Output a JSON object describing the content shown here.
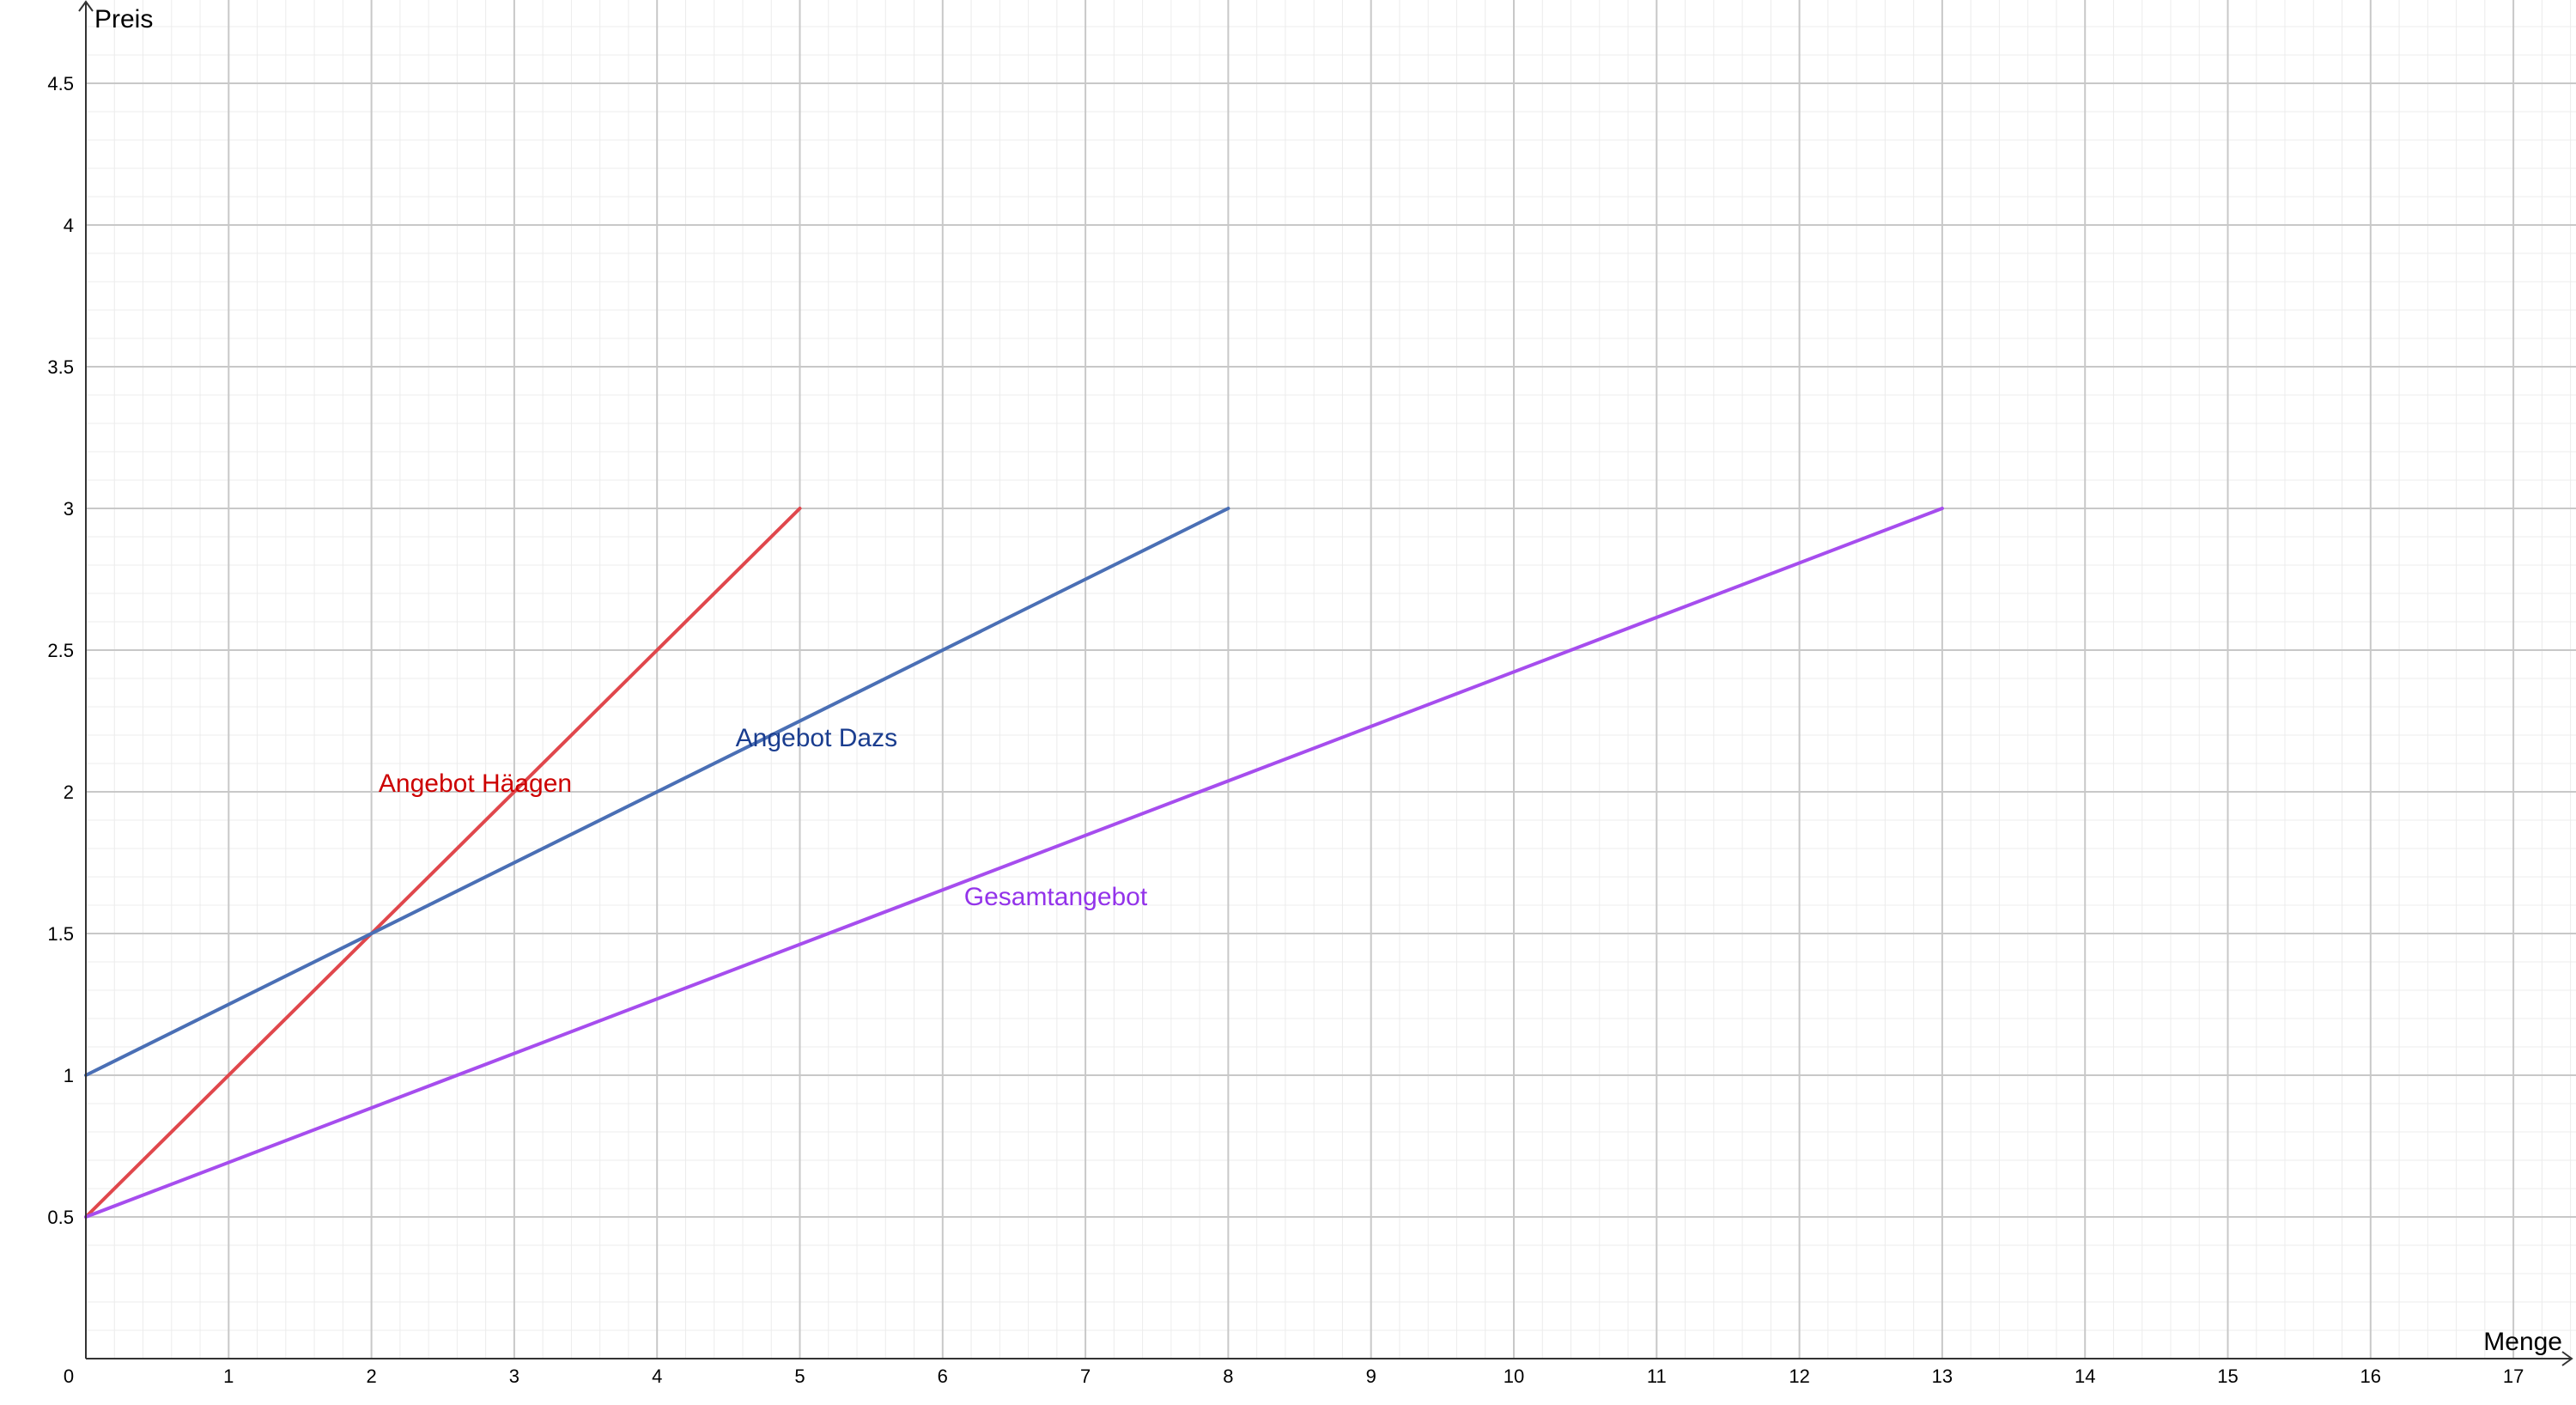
{
  "chart_data": {
    "type": "line",
    "xlabel": "Menge",
    "ylabel": "Preis",
    "xlim": [
      0,
      17.5
    ],
    "ylim": [
      0,
      4.8
    ],
    "x_ticks": [
      "0",
      "1",
      "2",
      "3",
      "4",
      "5",
      "6",
      "7",
      "8",
      "9",
      "10",
      "11",
      "12",
      "13",
      "14",
      "15",
      "16",
      "17"
    ],
    "y_ticks": [
      "0.5",
      "1",
      "1.5",
      "2",
      "2.5",
      "3",
      "3.5",
      "4",
      "4.5"
    ],
    "grid": true,
    "series": [
      {
        "name": "Angebot Häagen",
        "color": "#e0474c",
        "label_color": "#cc0000",
        "points": [
          {
            "x": 0,
            "y": 0.5
          },
          {
            "x": 5,
            "y": 3
          }
        ]
      },
      {
        "name": "Angebot Dazs",
        "color": "#4a6fb5",
        "label_color": "#1a3d8f",
        "points": [
          {
            "x": 0,
            "y": 1
          },
          {
            "x": 8,
            "y": 3
          }
        ]
      },
      {
        "name": "Gesamtangebot",
        "color": "#a64dee",
        "label_color": "#9333ea",
        "points": [
          {
            "x": 0,
            "y": 0.5
          },
          {
            "x": 13,
            "y": 3
          }
        ]
      }
    ]
  }
}
